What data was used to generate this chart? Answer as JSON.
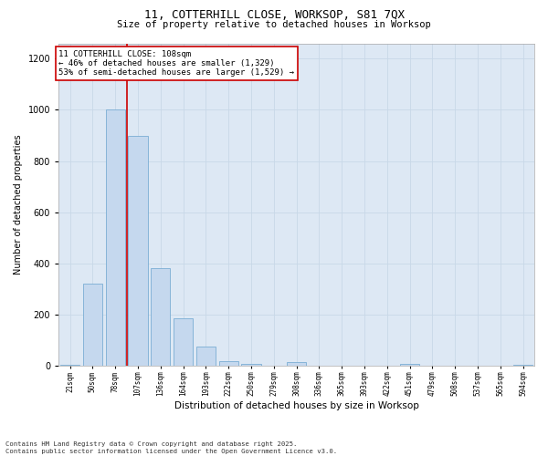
{
  "title_line1": "11, COTTERHILL CLOSE, WORKSOP, S81 7QX",
  "title_line2": "Size of property relative to detached houses in Worksop",
  "xlabel": "Distribution of detached houses by size in Worksop",
  "ylabel": "Number of detached properties",
  "categories": [
    "21sqm",
    "50sqm",
    "78sqm",
    "107sqm",
    "136sqm",
    "164sqm",
    "193sqm",
    "222sqm",
    "250sqm",
    "279sqm",
    "308sqm",
    "336sqm",
    "365sqm",
    "393sqm",
    "422sqm",
    "451sqm",
    "479sqm",
    "508sqm",
    "537sqm",
    "565sqm",
    "594sqm"
  ],
  "values": [
    5,
    320,
    1000,
    900,
    380,
    185,
    75,
    20,
    8,
    2,
    15,
    2,
    0,
    0,
    0,
    8,
    0,
    0,
    0,
    0,
    5
  ],
  "bar_color": "#c5d8ee",
  "bar_edge_color": "#7aadd4",
  "bar_edge_width": 0.6,
  "red_line_x": 2.5,
  "red_line_color": "#cc0000",
  "annotation_text": "11 COTTERHILL CLOSE: 108sqm\n← 46% of detached houses are smaller (1,329)\n53% of semi-detached houses are larger (1,529) →",
  "annotation_box_color": "#ffffff",
  "annotation_box_edge_color": "#cc0000",
  "ylim": [
    0,
    1260
  ],
  "yticks": [
    0,
    200,
    400,
    600,
    800,
    1000,
    1200
  ],
  "grid_color": "#c8d8e8",
  "background_color": "#dde8f4",
  "footer_text": "Contains HM Land Registry data © Crown copyright and database right 2025.\nContains public sector information licensed under the Open Government Licence v3.0.",
  "figsize": [
    6.0,
    5.0
  ],
  "dpi": 100
}
